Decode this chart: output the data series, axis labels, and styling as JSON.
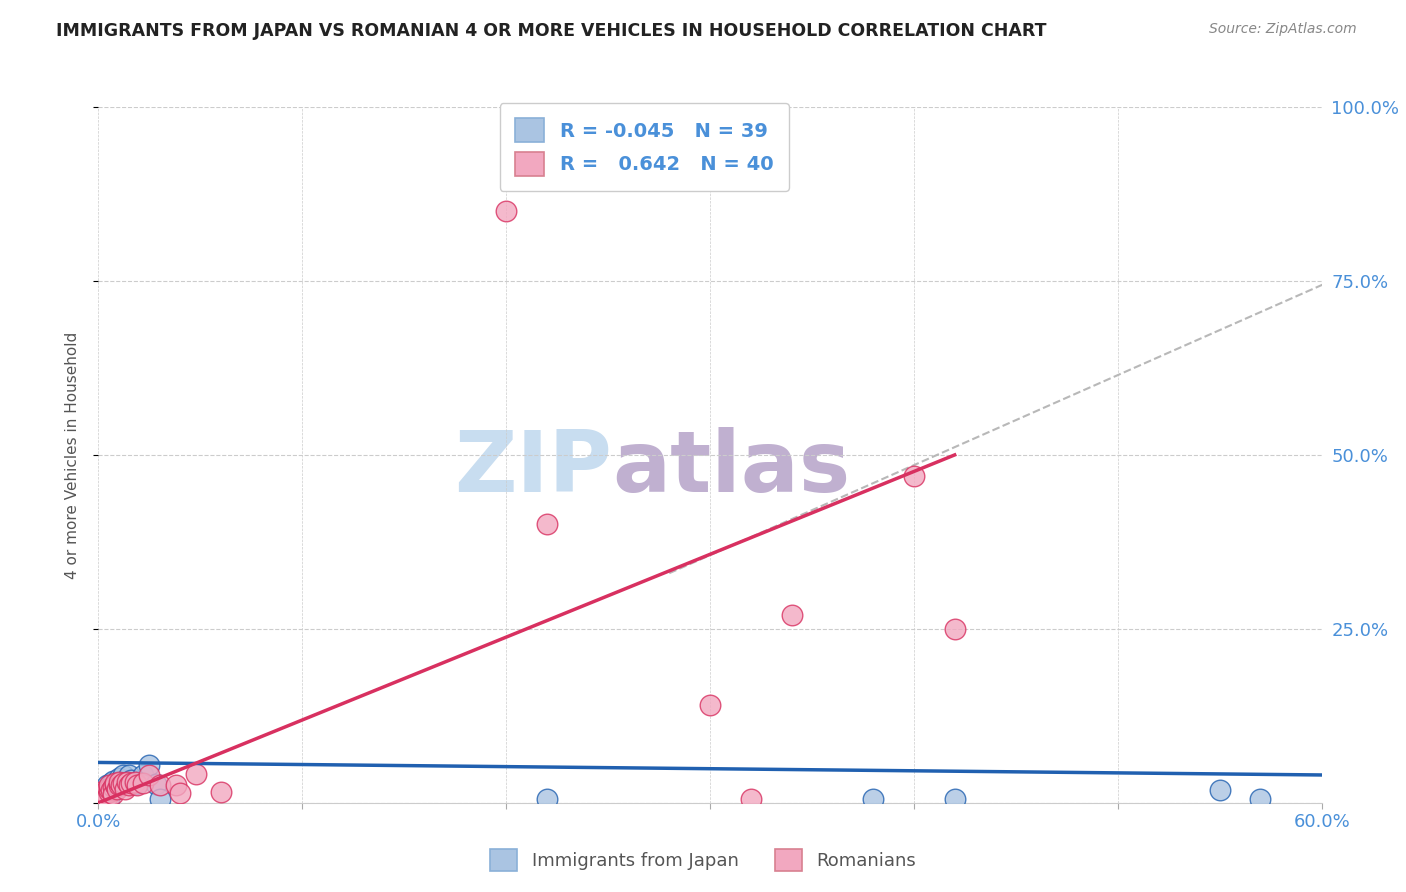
{
  "title": "IMMIGRANTS FROM JAPAN VS ROMANIAN 4 OR MORE VEHICLES IN HOUSEHOLD CORRELATION CHART",
  "source": "Source: ZipAtlas.com",
  "ylabel": "4 or more Vehicles in Household",
  "xlim": [
    0.0,
    0.6
  ],
  "ylim": [
    0.0,
    1.0
  ],
  "yticks_right": [
    0.0,
    0.25,
    0.5,
    0.75,
    1.0
  ],
  "yticklabels_right": [
    "",
    "25.0%",
    "50.0%",
    "75.0%",
    "100.0%"
  ],
  "legend_R1": "-0.045",
  "legend_N1": "39",
  "legend_R2": "0.642",
  "legend_N2": "40",
  "legend_label1": "Immigrants from Japan",
  "legend_label2": "Romanians",
  "color_japan": "#aac4e2",
  "color_romania": "#f2a8c0",
  "color_japan_line": "#2060b0",
  "color_romania_line": "#d83060",
  "color_dashed": "#b8b8b8",
  "japan_x": [
    0.001,
    0.001,
    0.002,
    0.002,
    0.002,
    0.003,
    0.003,
    0.003,
    0.004,
    0.004,
    0.005,
    0.005,
    0.005,
    0.005,
    0.006,
    0.006,
    0.007,
    0.007,
    0.008,
    0.008,
    0.009,
    0.01,
    0.01,
    0.011,
    0.012,
    0.013,
    0.015,
    0.016,
    0.018,
    0.02,
    0.022,
    0.025,
    0.028,
    0.03,
    0.22,
    0.38,
    0.42,
    0.55,
    0.57
  ],
  "japan_y": [
    0.005,
    0.01,
    0.005,
    0.008,
    0.002,
    0.008,
    0.012,
    0.005,
    0.015,
    0.025,
    0.01,
    0.018,
    0.02,
    0.005,
    0.025,
    0.028,
    0.02,
    0.032,
    0.025,
    0.028,
    0.022,
    0.03,
    0.035,
    0.025,
    0.04,
    0.03,
    0.04,
    0.033,
    0.027,
    0.03,
    0.04,
    0.055,
    0.027,
    0.005,
    0.005,
    0.005,
    0.005,
    0.018,
    0.005
  ],
  "romania_x": [
    0.001,
    0.001,
    0.002,
    0.003,
    0.003,
    0.004,
    0.004,
    0.005,
    0.005,
    0.005,
    0.006,
    0.007,
    0.007,
    0.008,
    0.008,
    0.009,
    0.01,
    0.01,
    0.011,
    0.012,
    0.013,
    0.014,
    0.015,
    0.016,
    0.018,
    0.019,
    0.022,
    0.025,
    0.03,
    0.038,
    0.04,
    0.048,
    0.06,
    0.2,
    0.22,
    0.3,
    0.32,
    0.34,
    0.4,
    0.42
  ],
  "romania_y": [
    0.008,
    0.015,
    0.01,
    0.012,
    0.005,
    0.02,
    0.008,
    0.015,
    0.02,
    0.025,
    0.018,
    0.022,
    0.012,
    0.025,
    0.028,
    0.02,
    0.025,
    0.03,
    0.025,
    0.028,
    0.02,
    0.03,
    0.025,
    0.028,
    0.03,
    0.025,
    0.028,
    0.04,
    0.025,
    0.025,
    0.014,
    0.042,
    0.015,
    0.85,
    0.4,
    0.14,
    0.005,
    0.27,
    0.47,
    0.25
  ],
  "japan_line_x": [
    0.0,
    0.6
  ],
  "japan_line_y": [
    0.058,
    0.04
  ],
  "romania_line_x": [
    0.0,
    0.42
  ],
  "romania_line_y": [
    0.0,
    0.5
  ],
  "dashed_line_x": [
    0.28,
    0.62
  ],
  "dashed_line_y": [
    0.33,
    0.77
  ],
  "watermark_zip": "ZIP",
  "watermark_atlas": "atlas",
  "watermark_color_zip": "#c8ddf0",
  "watermark_color_atlas": "#c0b0d0",
  "background_color": "#ffffff"
}
